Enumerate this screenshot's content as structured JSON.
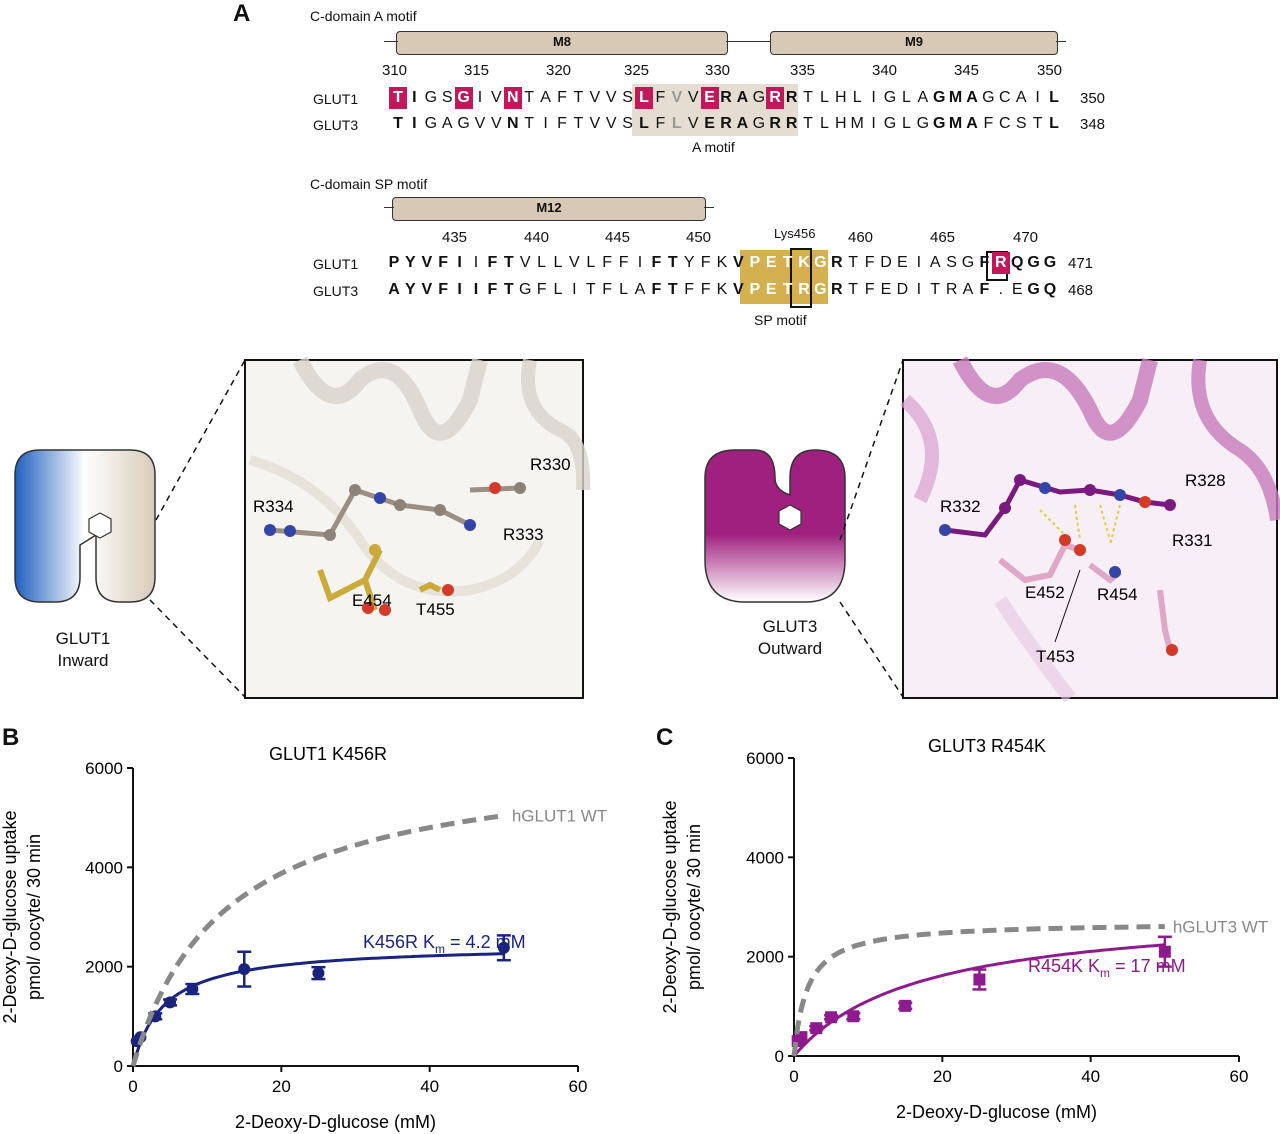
{
  "panels": {
    "a": "A",
    "b": "B",
    "c": "C"
  },
  "panel_a": {
    "a_motif_title": "C-domain A motif",
    "sp_motif_title": "C-domain SP motif",
    "helices": {
      "m8": "M8",
      "m9": "M9",
      "m12": "M12"
    },
    "top_numbers": [
      "310",
      "315",
      "320",
      "325",
      "330",
      "335",
      "340",
      "345",
      "350"
    ],
    "bottom_numbers": [
      "435",
      "440",
      "445",
      "450",
      "460",
      "465",
      "470"
    ],
    "lys_label": "Lys456",
    "a_motif_label": "A motif",
    "sp_motif_label": "SP motif",
    "rows": {
      "glut1_a": {
        "name": "GLUT1",
        "seq": "TIGSGIVNTAFTVVSLFVVERAGRRTLHLIGLAGMAGCAIL",
        "end": "350"
      },
      "glut3_a": {
        "name": "GLUT3",
        "seq": "TIGAGVVNTIFTVVSLFLVERAGRRTLHMIGLGGMAFCSTL",
        "end": "348"
      },
      "glut1_sp": {
        "name": "GLUT1",
        "seq": "PYVFIIFTVLLVLFFIFTYFKVPETKGRTFDEIASGFRQGG",
        "end": "471"
      },
      "glut3_sp": {
        "name": "GLUT3",
        "seq": "AYVFIIFTGFLITFLAFTFFKVPETRGRTFEDITRAF.EGQ",
        "end": "468"
      }
    }
  },
  "structures": {
    "glut1_schematic": {
      "line1": "GLUT1",
      "line2": "Inward"
    },
    "glut3_schematic": {
      "line1": "GLUT3",
      "line2": "Outward"
    },
    "glut1_residues": [
      "R330",
      "R334",
      "R333",
      "E454",
      "T455"
    ],
    "glut3_residues": [
      "R328",
      "R332",
      "R331",
      "E452",
      "R454",
      "T453"
    ]
  },
  "chart_data": [
    {
      "type": "scatter",
      "title": "GLUT1 K456R",
      "xlabel": "2-Deoxy-D-glucose (mM)",
      "ylabel": [
        "2-Deoxy-D-glucose uptake",
        "pmol/ oocyte/ 30 min"
      ],
      "xlim": [
        0,
        60
      ],
      "ylim": [
        0,
        6000
      ],
      "xticks": [
        0,
        20,
        40,
        60
      ],
      "yticks": [
        0,
        2000,
        4000,
        6000
      ],
      "series": [
        {
          "name": "K456R",
          "color": "#1a237e",
          "marker": "circle",
          "x": [
            0.5,
            1,
            3,
            5,
            8,
            15,
            25,
            50
          ],
          "y": [
            500,
            580,
            1000,
            1280,
            1550,
            1950,
            1870,
            2380
          ],
          "err": [
            0,
            0,
            60,
            60,
            100,
            350,
            120,
            250
          ],
          "fit": {
            "vmax": 2450,
            "km": 4.2
          },
          "annotation": "K456R K",
          "annotation_sub": "m",
          "annotation_tail": " = 4.2 mM"
        },
        {
          "name": "hGLUT1 WT",
          "color": "#888888",
          "dashed": true,
          "fit": {
            "vmax": 6300,
            "km": 12.5
          },
          "label": "hGLUT1 WT"
        }
      ]
    },
    {
      "type": "scatter",
      "title": "GLUT3 R454K",
      "xlabel": "2-Deoxy-D-glucose (mM)",
      "ylabel": [
        "2-Deoxy-D-glucose uptake",
        "pmol/ oocyte/ 30 min"
      ],
      "xlim": [
        0,
        60
      ],
      "ylim": [
        0,
        6000
      ],
      "xticks": [
        0,
        20,
        40,
        60
      ],
      "yticks": [
        0,
        2000,
        4000,
        6000
      ],
      "series": [
        {
          "name": "R454K",
          "color": "#8e1b8e",
          "marker": "square",
          "x": [
            0.5,
            1,
            3,
            5,
            8,
            15,
            25,
            50
          ],
          "y": [
            300,
            380,
            560,
            780,
            800,
            1010,
            1540,
            2100
          ],
          "err": [
            0,
            0,
            40,
            40,
            60,
            60,
            200,
            300
          ],
          "fit": {
            "vmax": 3000,
            "km": 17
          },
          "annotation": "R454K K",
          "annotation_sub": "m",
          "annotation_tail": " = 17 mM"
        },
        {
          "name": "hGLUT3 WT",
          "color": "#888888",
          "dashed": true,
          "fit": {
            "vmax": 2700,
            "km": 1.8
          },
          "label": "hGLUT3 WT"
        }
      ]
    }
  ]
}
